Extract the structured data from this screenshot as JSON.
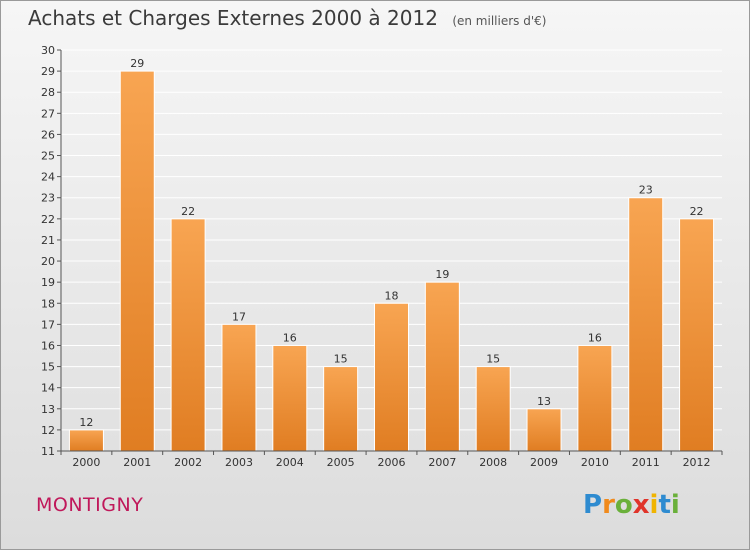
{
  "title": "Achats et Charges Externes 2000 à 2012",
  "unit": "(en milliers d'€)",
  "commune": "MONTIGNY",
  "logo": {
    "text": "Proxiti",
    "letters": [
      {
        "ch": "P",
        "color": "#2e8bd0"
      },
      {
        "ch": "r",
        "color": "#f08a1c"
      },
      {
        "ch": "o",
        "color": "#6ab03a"
      },
      {
        "ch": "x",
        "color": "#e0342a"
      },
      {
        "ch": "i",
        "color": "#f0b400"
      },
      {
        "ch": "t",
        "color": "#2e8bd0"
      },
      {
        "ch": "i",
        "color": "#6ab03a"
      }
    ]
  },
  "colors": {
    "bar": "#e8862e",
    "bar_light": "#f5a04b",
    "grid": "#ffffff"
  },
  "chart_data": {
    "type": "bar",
    "categories": [
      "2000",
      "2001",
      "2002",
      "2003",
      "2004",
      "2005",
      "2006",
      "2007",
      "2008",
      "2009",
      "2010",
      "2011",
      "2012"
    ],
    "values": [
      12,
      29,
      22,
      17,
      16,
      15,
      18,
      19,
      15,
      13,
      16,
      23,
      22
    ],
    "title": "Achats et Charges Externes 2000 à 2012",
    "xlabel": "",
    "ylabel": "",
    "ylim": [
      11,
      30
    ],
    "yticks": [
      11,
      12,
      13,
      14,
      15,
      16,
      17,
      18,
      19,
      20,
      21,
      22,
      23,
      24,
      25,
      26,
      27,
      28,
      29,
      30
    ],
    "grid": true,
    "data_labels": true
  }
}
